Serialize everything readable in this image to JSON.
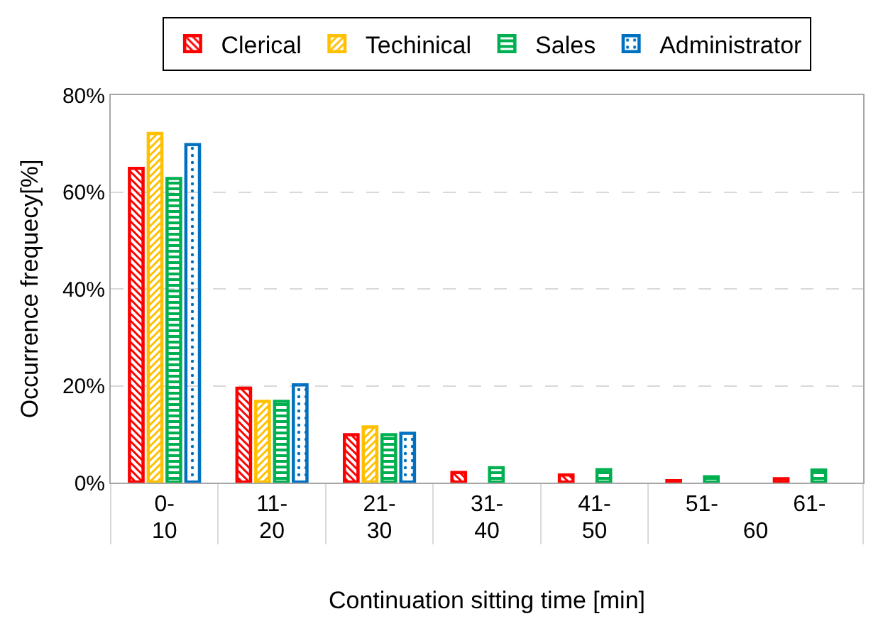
{
  "chart_data": {
    "type": "bar",
    "xlabel": "Continuation sitting time [min]",
    "ylabel": "Occurrence frequecy[%]",
    "categories": [
      "0-\n10",
      "11-\n20",
      "21-\n30",
      "31-\n40",
      "41-\n50",
      "51-\n60",
      "61-"
    ],
    "ylim": [
      0,
      80
    ],
    "yticks": [
      {
        "value": 0,
        "label": "0%"
      },
      {
        "value": 20,
        "label": "20%"
      },
      {
        "value": 40,
        "label": "40%"
      },
      {
        "value": 60,
        "label": "60%"
      },
      {
        "value": 80,
        "label": "80%"
      }
    ],
    "grid": "y",
    "legend": "top",
    "series": [
      {
        "name": "Clerical",
        "color": "#ff0000",
        "values": [
          65.0,
          19.6,
          10.0,
          2.2,
          1.7,
          0.5,
          0.9
        ]
      },
      {
        "name": "Techinical",
        "color": "#ffc000",
        "values": [
          72.2,
          16.9,
          11.6,
          null,
          null,
          null,
          null
        ]
      },
      {
        "name": "Sales",
        "color": "#00b050",
        "values": [
          62.9,
          16.9,
          10.0,
          3.2,
          2.8,
          1.3,
          2.7
        ]
      },
      {
        "name": "Administrator",
        "color": "#0070c0",
        "values": [
          69.9,
          20.3,
          10.3,
          null,
          null,
          null,
          null
        ]
      }
    ]
  }
}
